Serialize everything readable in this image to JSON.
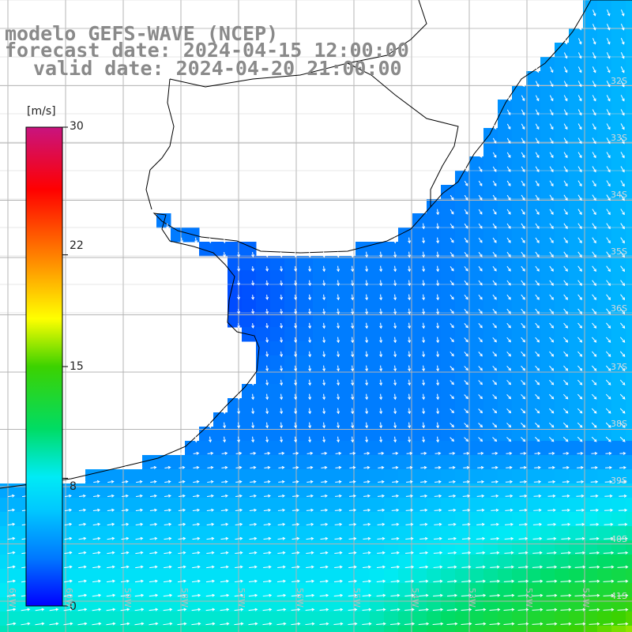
{
  "title": {
    "line1": "modelo GEFS-WAVE (NCEP)",
    "line2": "forecast date: 2024-04-15 12:00:00",
    "line3": "valid date: 2024-04-20 21:00:00"
  },
  "colorbar": {
    "unit": "[m/s]",
    "ticks": [
      "30",
      "22",
      "15",
      "8",
      "0"
    ],
    "tick_values": [
      30,
      22,
      15,
      8,
      0
    ],
    "min": 0,
    "max": 30,
    "colors": [
      "#0000ff",
      "#00b4ff",
      "#00ffff",
      "#00e05a",
      "#32cd00",
      "#ffff00",
      "#ff8c00",
      "#ff0000",
      "#c71585"
    ]
  },
  "map": {
    "variable": "wind speed and direction",
    "land_color": "#ffffff",
    "coast_color": "#000000",
    "grid_color": "#b4b4b4",
    "arrow_color": "#ffffff",
    "lat_labels": [
      "32S",
      "33S",
      "34S",
      "35S",
      "36S",
      "37S",
      "38S",
      "39S",
      "40S",
      "41S"
    ],
    "lon_labels": [
      "61W",
      "60W",
      "59W",
      "58W",
      "57W",
      "56W",
      "55W",
      "54W",
      "53W",
      "52W",
      "51W"
    ]
  }
}
